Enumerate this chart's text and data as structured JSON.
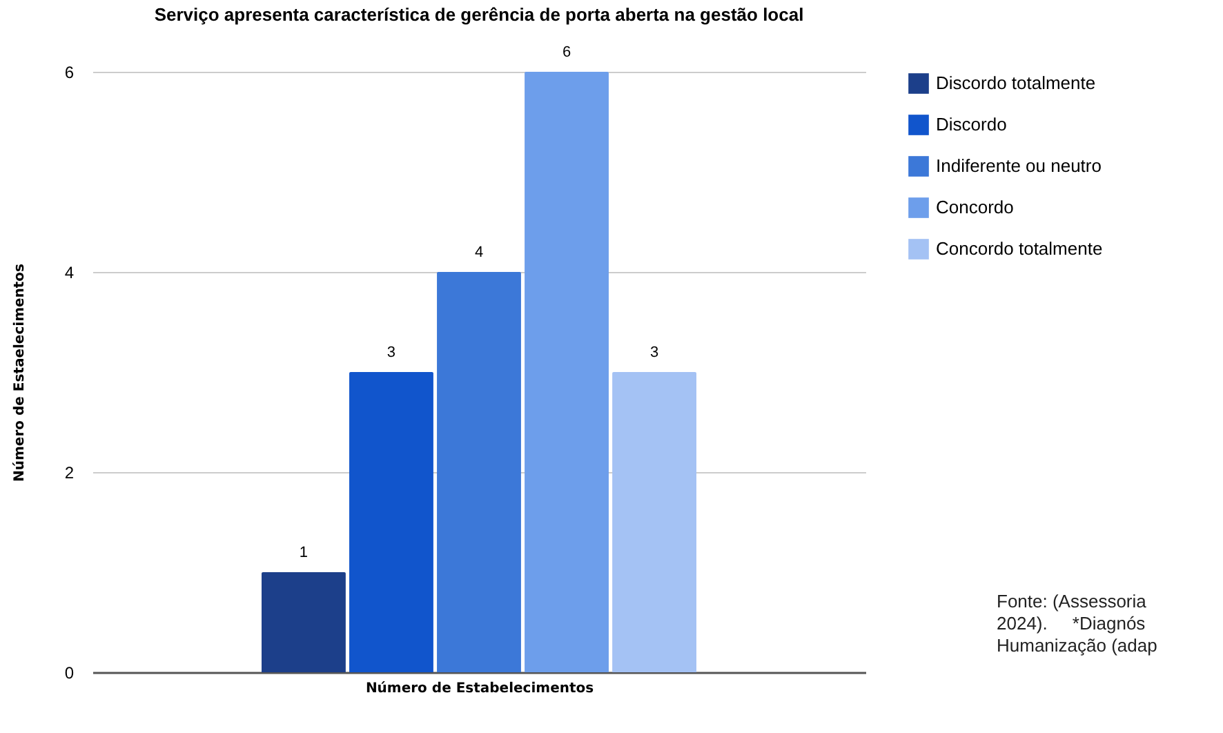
{
  "chart_data": {
    "type": "bar",
    "title": "Serviço apresenta característica de gerência de porta aberta na gestão local",
    "xlabel": "Número de Estabelecimentos",
    "ylabel": "Número de Estaelecimentos",
    "categories": [
      null
    ],
    "series": [
      {
        "name": "Discordo totalmente",
        "color": "#1c3f8a",
        "values": [
          1
        ]
      },
      {
        "name": "Discordo",
        "color": "#1155cc",
        "values": [
          3
        ]
      },
      {
        "name": "Indiferente ou neutro",
        "color": "#3c78d8",
        "values": [
          4
        ]
      },
      {
        "name": "Concordo",
        "color": "#6d9eeb",
        "values": [
          6
        ]
      },
      {
        "name": "Concordo totalmente",
        "color": "#a4c2f4",
        "values": [
          3
        ]
      }
    ],
    "ylim": [
      0,
      6
    ],
    "yticks": [
      0,
      2,
      4,
      6
    ],
    "grid": "y",
    "legend": "right",
    "data_labels": true,
    "tick_labels": "y",
    "annotations": [
      "Fonte: (Assessoria",
      "2024).     *Diagnós",
      "Humanização (adap"
    ]
  }
}
